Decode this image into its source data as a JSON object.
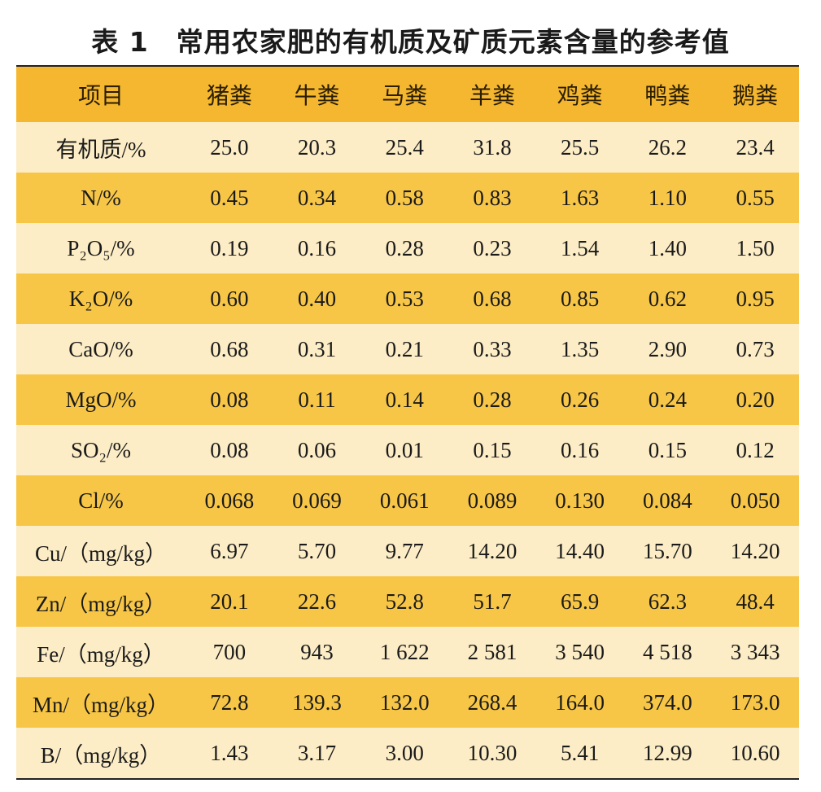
{
  "title": "表 1　常用农家肥的有机质及矿质元素含量的参考值",
  "header": [
    "项目",
    "猪粪",
    "牛粪",
    "马粪",
    "羊粪",
    "鸡粪",
    "鸭粪",
    "鹅粪"
  ],
  "rows": [
    {
      "label": "有机质/%",
      "values": [
        "25.0",
        "20.3",
        "25.4",
        "31.8",
        "25.5",
        "26.2",
        "23.4"
      ]
    },
    {
      "label": "N/%",
      "values": [
        "0.45",
        "0.34",
        "0.58",
        "0.83",
        "1.63",
        "1.10",
        "0.55"
      ]
    },
    {
      "label": "P₂O₅/%",
      "values": [
        "0.19",
        "0.16",
        "0.28",
        "0.23",
        "1.54",
        "1.40",
        "1.50"
      ]
    },
    {
      "label": "K₂O/%",
      "values": [
        "0.60",
        "0.40",
        "0.53",
        "0.68",
        "0.85",
        "0.62",
        "0.95"
      ]
    },
    {
      "label": "CaO/%",
      "values": [
        "0.68",
        "0.31",
        "0.21",
        "0.33",
        "1.35",
        "2.90",
        "0.73"
      ]
    },
    {
      "label": "MgO/%",
      "values": [
        "0.08",
        "0.11",
        "0.14",
        "0.28",
        "0.26",
        "0.24",
        "0.20"
      ]
    },
    {
      "label": "SO₂/%",
      "values": [
        "0.08",
        "0.06",
        "0.01",
        "0.15",
        "0.16",
        "0.15",
        "0.12"
      ]
    },
    {
      "label": "Cl/%",
      "values": [
        "0.068",
        "0.069",
        "0.061",
        "0.089",
        "0.130",
        "0.084",
        "0.050"
      ]
    },
    {
      "label": "Cu/（mg/kg）",
      "values": [
        "6.97",
        "5.70",
        "9.77",
        "14.20",
        "14.40",
        "15.70",
        "14.20"
      ]
    },
    {
      "label": "Zn/（mg/kg）",
      "values": [
        "20.1",
        "22.6",
        "52.8",
        "51.7",
        "65.9",
        "62.3",
        "48.4"
      ]
    },
    {
      "label": "Fe/（mg/kg）",
      "values": [
        "700",
        "943",
        "1 622",
        "2 581",
        "3 540",
        "4 518",
        "3 343"
      ]
    },
    {
      "label": "Mn/（mg/kg）",
      "values": [
        "72.8",
        "139.3",
        "132.0",
        "268.4",
        "164.0",
        "374.0",
        "173.0"
      ]
    },
    {
      "label": "B/（mg/kg）",
      "values": [
        "1.43",
        "3.17",
        "3.00",
        "10.30",
        "5.41",
        "12.99",
        "10.60"
      ]
    }
  ]
}
